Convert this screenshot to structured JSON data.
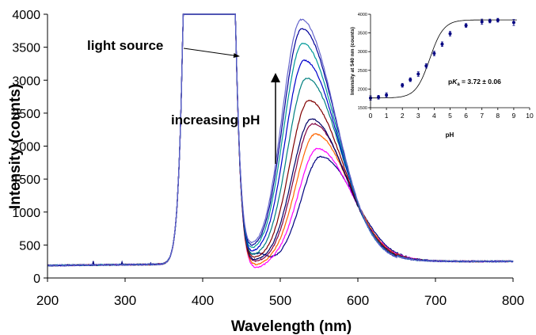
{
  "chart_data": [
    {
      "type": "line",
      "xlabel": "Wavelength (nm)",
      "ylabel": "Intensity (counts)",
      "xlim": [
        200,
        800
      ],
      "ylim": [
        0,
        4000
      ],
      "xticks": [
        200,
        300,
        400,
        500,
        600,
        700,
        800
      ],
      "yticks": [
        0,
        500,
        1000,
        1500,
        2000,
        2500,
        3000,
        3500,
        4000
      ],
      "annotations": [
        "light source",
        "increasing pH"
      ],
      "baseline_level": 190,
      "source_peak_wavelength": 408,
      "emission_peak_range_nm": [
        527,
        552
      ],
      "series": [
        {
          "color": "#000080",
          "peak_wavelength": 552,
          "peak_intensity": 1760,
          "trough_wavelength": 472,
          "trough_intensity": 640
        },
        {
          "color": "#ff00ff",
          "peak_wavelength": 548,
          "peak_intensity": 1880,
          "trough_wavelength": 470,
          "trough_intensity": 420
        },
        {
          "color": "#ff6600",
          "peak_wavelength": 545,
          "peak_intensity": 2100,
          "trough_wavelength": 470,
          "trough_intensity": 460
        },
        {
          "color": "#800040",
          "peak_wavelength": 542,
          "peak_intensity": 2260,
          "trough_wavelength": 469,
          "trough_intensity": 500
        },
        {
          "color": "#000066",
          "peak_wavelength": 540,
          "peak_intensity": 2330,
          "trough_wavelength": 468,
          "trough_intensity": 520
        },
        {
          "color": "#800000",
          "peak_wavelength": 537,
          "peak_intensity": 2610,
          "trough_wavelength": 467,
          "trough_intensity": 540
        },
        {
          "color": "#008080",
          "peak_wavelength": 534,
          "peak_intensity": 2950,
          "trough_wavelength": 466,
          "trough_intensity": 560
        },
        {
          "color": "#0000cc",
          "peak_wavelength": 531,
          "peak_intensity": 3220,
          "trough_wavelength": 465,
          "trough_intensity": 580
        },
        {
          "color": "#009999",
          "peak_wavelength": 529,
          "peak_intensity": 3480,
          "trough_wavelength": 464,
          "trough_intensity": 600
        },
        {
          "color": "#000099",
          "peak_wavelength": 528,
          "peak_intensity": 3700,
          "trough_wavelength": 463,
          "trough_intensity": 620
        },
        {
          "color": "#6666cc",
          "peak_wavelength": 527,
          "peak_intensity": 3840,
          "trough_wavelength": 462,
          "trough_intensity": 640
        }
      ]
    },
    {
      "type": "scatter",
      "xlabel": "pH",
      "ylabel": "Intensity at 540 nm (counts)",
      "xlim": [
        0,
        10
      ],
      "ylim": [
        1500,
        4000
      ],
      "xticks": [
        0,
        1,
        2,
        3,
        4,
        5,
        6,
        7,
        8,
        9,
        10
      ],
      "yticks": [
        1500,
        2000,
        2500,
        3000,
        3500,
        4000
      ],
      "annotation": "pKa = 3.72 ± 0.06",
      "annotation_parts": {
        "p": "p",
        "K": "K",
        "a": "a",
        "rest": " = 3.72 ± 0.06"
      },
      "points": [
        {
          "x": 0,
          "y": 1760,
          "err": 60
        },
        {
          "x": 0.5,
          "y": 1780,
          "err": 50
        },
        {
          "x": 1,
          "y": 1840,
          "err": 60
        },
        {
          "x": 2,
          "y": 2100,
          "err": 50
        },
        {
          "x": 2.5,
          "y": 2250,
          "err": 50
        },
        {
          "x": 3,
          "y": 2400,
          "err": 60
        },
        {
          "x": 3.5,
          "y": 2620,
          "err": 60
        },
        {
          "x": 4,
          "y": 2950,
          "err": 60
        },
        {
          "x": 4.5,
          "y": 3200,
          "err": 60
        },
        {
          "x": 5,
          "y": 3480,
          "err": 60
        },
        {
          "x": 6,
          "y": 3700,
          "err": 50
        },
        {
          "x": 7,
          "y": 3800,
          "err": 70
        },
        {
          "x": 7.5,
          "y": 3820,
          "err": 50
        },
        {
          "x": 8,
          "y": 3840,
          "err": 50
        },
        {
          "x": 9,
          "y": 3780,
          "err": 80
        }
      ],
      "fit": {
        "type": "sigmoid",
        "bottom": 1760,
        "top": 3850,
        "pKa": 3.72
      },
      "color": "#000080"
    }
  ]
}
